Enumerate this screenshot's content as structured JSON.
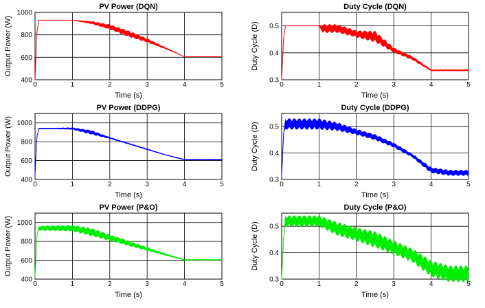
{
  "chart_data": [
    {
      "type": "line",
      "title": "PV Power (DQN)",
      "xlabel": "Time (s)",
      "ylabel": "Output Power (W)",
      "xlim": [
        0,
        5
      ],
      "ylim": [
        400,
        1000
      ],
      "xticks": [
        "0",
        "1",
        "2",
        "3",
        "4",
        "5"
      ],
      "yticks": [
        "400",
        "600",
        "800",
        "1000"
      ],
      "grid": true,
      "series": [
        {
          "color": "#ff0000",
          "x": [
            0,
            0.05,
            0.1,
            0.2,
            0.5,
            1.0,
            1.5,
            2.0,
            2.5,
            3.0,
            3.5,
            4.0,
            4.5,
            5.0
          ],
          "values": [
            400,
            820,
            930,
            930,
            930,
            930,
            910,
            870,
            810,
            750,
            680,
            605,
            605,
            605
          ],
          "ripple": [
            0,
            0,
            0,
            0,
            0,
            0,
            10,
            20,
            25,
            15,
            5,
            0,
            0,
            0
          ]
        }
      ]
    },
    {
      "type": "line",
      "title": "Duty Cycle (DQN)",
      "xlabel": "Time (s)",
      "ylabel": "Duty Cycle (D)",
      "xlim": [
        0,
        5
      ],
      "ylim": [
        0.3,
        0.55
      ],
      "xticks": [
        "0",
        "1",
        "2",
        "3",
        "4",
        "5"
      ],
      "yticks": [
        "0.3",
        "0.4",
        "0.5"
      ],
      "grid": true,
      "series": [
        {
          "color": "#ff0000",
          "x": [
            0,
            0.05,
            0.1,
            0.2,
            0.5,
            1.0,
            1.1,
            1.5,
            2.0,
            2.5,
            3.0,
            3.5,
            4.0,
            4.5,
            5.0
          ],
          "values": [
            0.3,
            0.45,
            0.5,
            0.5,
            0.5,
            0.5,
            0.49,
            0.49,
            0.47,
            0.46,
            0.41,
            0.38,
            0.335,
            0.335,
            0.335
          ],
          "ripple": [
            0,
            0,
            0,
            0,
            0,
            0,
            0.015,
            0.015,
            0.012,
            0.02,
            0.008,
            0.006,
            0.002,
            0.002,
            0.002
          ]
        }
      ]
    },
    {
      "type": "line",
      "title": "PV Power (DDPG)",
      "xlabel": "Time (s)",
      "ylabel": "Output Power (W)",
      "xlim": [
        0,
        5
      ],
      "ylim": [
        400,
        1100
      ],
      "xticks": [
        "0",
        "1",
        "2",
        "3",
        "4",
        "5"
      ],
      "yticks": [
        "400",
        "600",
        "800",
        "1000"
      ],
      "grid": true,
      "series": [
        {
          "color": "#0000ff",
          "x": [
            0,
            0.05,
            0.1,
            0.2,
            0.5,
            1.0,
            1.5,
            2.0,
            2.5,
            3.0,
            3.5,
            4.0,
            4.5,
            5.0
          ],
          "values": [
            450,
            850,
            940,
            940,
            940,
            940,
            900,
            840,
            780,
            720,
            660,
            610,
            610,
            610
          ],
          "ripple": [
            0,
            0,
            4,
            4,
            4,
            8,
            20,
            6,
            4,
            4,
            2,
            3,
            3,
            3
          ]
        }
      ]
    },
    {
      "type": "line",
      "title": "Duty Cycle (DDPG)",
      "xlabel": "Time (s)",
      "ylabel": "Duty Cycle (D)",
      "xlim": [
        0,
        5
      ],
      "ylim": [
        0.3,
        0.55
      ],
      "xticks": [
        "0",
        "1",
        "2",
        "3",
        "4",
        "5"
      ],
      "yticks": [
        "0.3",
        "0.4",
        "0.5"
      ],
      "grid": true,
      "series": [
        {
          "color": "#0000ff",
          "x": [
            0,
            0.05,
            0.1,
            0.2,
            0.5,
            1.0,
            1.5,
            2.0,
            2.5,
            3.0,
            3.5,
            4.0,
            4.5,
            5.0
          ],
          "values": [
            0.31,
            0.47,
            0.51,
            0.51,
            0.51,
            0.51,
            0.5,
            0.48,
            0.46,
            0.43,
            0.39,
            0.335,
            0.325,
            0.325
          ],
          "ripple": [
            0,
            0,
            0.02,
            0.02,
            0.02,
            0.02,
            0.015,
            0.01,
            0.01,
            0.008,
            0.006,
            0.01,
            0.01,
            0.01
          ]
        }
      ]
    },
    {
      "type": "line",
      "title": "PV Power (P&O)",
      "xlabel": "Time (s)",
      "ylabel": "Output Power (W)",
      "xlim": [
        0,
        5
      ],
      "ylim": [
        400,
        1100
      ],
      "xticks": [
        "0",
        "1",
        "2",
        "3",
        "4",
        "5"
      ],
      "yticks": [
        "400",
        "600",
        "800",
        "1000"
      ],
      "grid": true,
      "series": [
        {
          "color": "#00ee00",
          "x": [
            0,
            0.05,
            0.1,
            0.2,
            0.5,
            1.0,
            1.5,
            2.0,
            2.5,
            3.0,
            3.5,
            4.0,
            4.5,
            5.0
          ],
          "values": [
            420,
            850,
            940,
            940,
            940,
            940,
            900,
            840,
            780,
            720,
            660,
            605,
            605,
            605
          ],
          "ripple": [
            0,
            0,
            20,
            25,
            25,
            30,
            40,
            30,
            25,
            15,
            8,
            2,
            2,
            2
          ]
        }
      ]
    },
    {
      "type": "line",
      "title": "Duty Cycle (P&O)",
      "xlabel": "Time (s)",
      "ylabel": "Duty Cycle (D)",
      "xlim": [
        0,
        5
      ],
      "ylim": [
        0.3,
        0.55
      ],
      "xticks": [
        "0",
        "1",
        "2",
        "3",
        "4",
        "5"
      ],
      "yticks": [
        "0.3",
        "0.4",
        "0.5"
      ],
      "grid": true,
      "series": [
        {
          "color": "#00ee00",
          "x": [
            0,
            0.05,
            0.1,
            0.2,
            0.5,
            1.0,
            1.5,
            2.0,
            2.5,
            3.0,
            3.5,
            4.0,
            4.5,
            5.0
          ],
          "values": [
            0.3,
            0.45,
            0.52,
            0.52,
            0.52,
            0.52,
            0.49,
            0.47,
            0.45,
            0.42,
            0.39,
            0.34,
            0.32,
            0.32
          ],
          "ripple": [
            0,
            0,
            0.02,
            0.02,
            0.02,
            0.02,
            0.025,
            0.025,
            0.03,
            0.025,
            0.025,
            0.03,
            0.03,
            0.03
          ]
        }
      ]
    }
  ]
}
